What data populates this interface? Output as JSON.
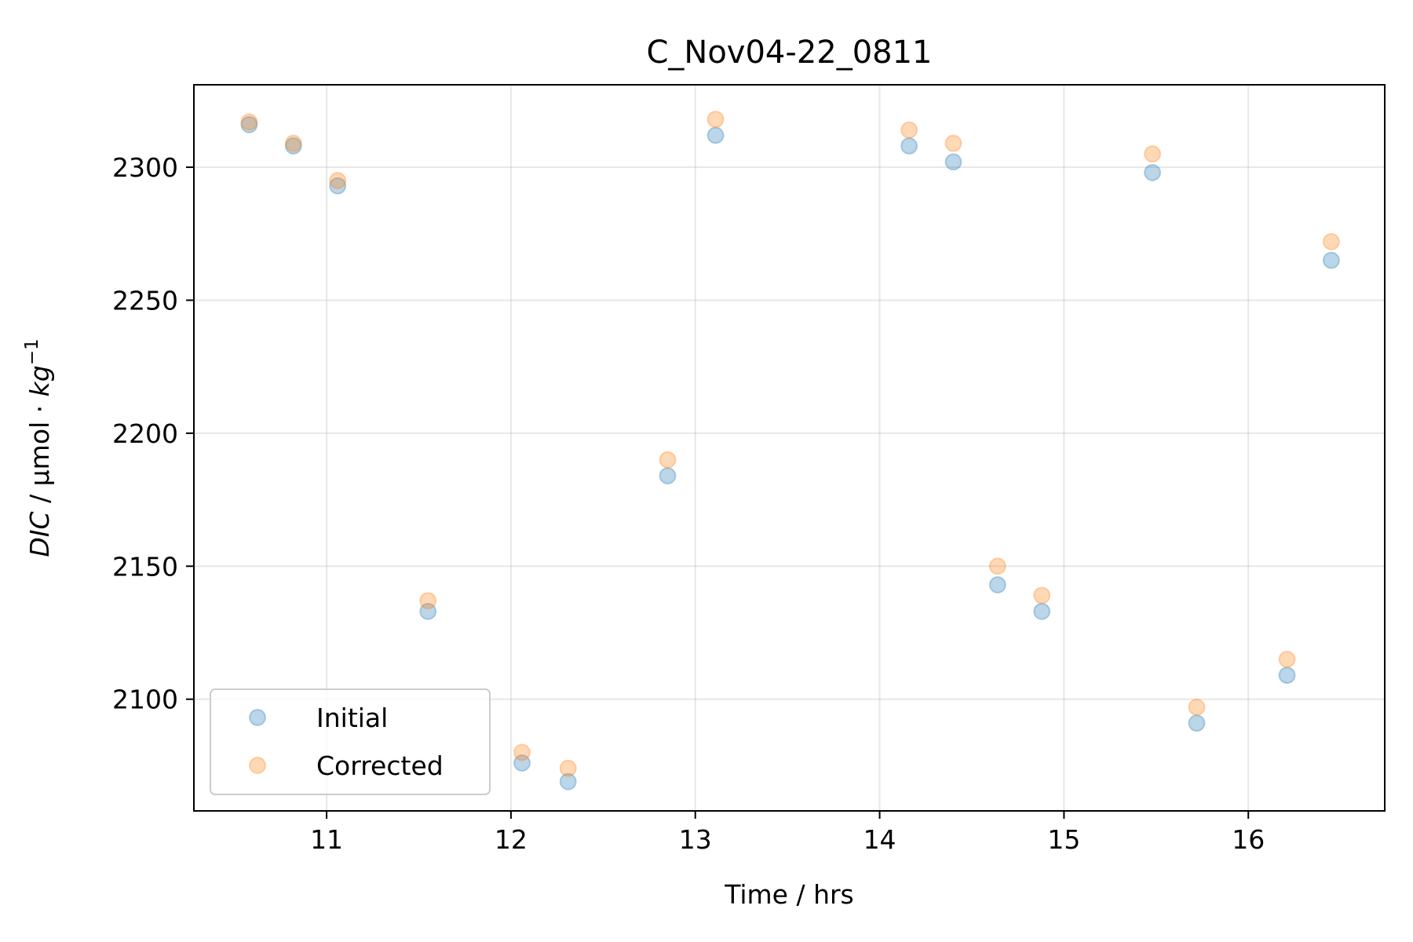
{
  "chart_data": {
    "type": "scatter",
    "title": "C_Nov04-22_0811",
    "xlabel": "Time / hrs",
    "ylabel": {
      "italic_part": "DIC",
      "unit_part": " / µmol · ",
      "unit_italic": "kg",
      "superscript": "−1"
    },
    "xlim": [
      10.28,
      16.74
    ],
    "ylim": [
      2058,
      2331
    ],
    "xticks": [
      11,
      12,
      13,
      14,
      15,
      16
    ],
    "yticks": [
      2100,
      2150,
      2200,
      2250,
      2300
    ],
    "grid": true,
    "legend_position": "lower left",
    "series": [
      {
        "name": "Initial",
        "color": "#1f77b4",
        "points": [
          [
            10.58,
            2316
          ],
          [
            10.82,
            2308
          ],
          [
            11.06,
            2293
          ],
          [
            11.55,
            2133
          ],
          [
            12.06,
            2076
          ],
          [
            12.31,
            2069
          ],
          [
            12.85,
            2184
          ],
          [
            13.11,
            2312
          ],
          [
            14.16,
            2308
          ],
          [
            14.4,
            2302
          ],
          [
            14.64,
            2143
          ],
          [
            14.88,
            2133
          ],
          [
            15.48,
            2298
          ],
          [
            15.72,
            2091
          ],
          [
            16.21,
            2109
          ],
          [
            16.45,
            2265
          ]
        ]
      },
      {
        "name": "Corrected",
        "color": "#ff7f0e",
        "points": [
          [
            10.58,
            2317
          ],
          [
            10.82,
            2309
          ],
          [
            11.06,
            2295
          ],
          [
            11.55,
            2137
          ],
          [
            12.06,
            2080
          ],
          [
            12.31,
            2074
          ],
          [
            12.85,
            2190
          ],
          [
            13.11,
            2318
          ],
          [
            14.16,
            2314
          ],
          [
            14.4,
            2309
          ],
          [
            14.64,
            2150
          ],
          [
            14.88,
            2139
          ],
          [
            15.48,
            2305
          ],
          [
            15.72,
            2097
          ],
          [
            16.21,
            2115
          ],
          [
            16.45,
            2272
          ]
        ]
      }
    ]
  }
}
